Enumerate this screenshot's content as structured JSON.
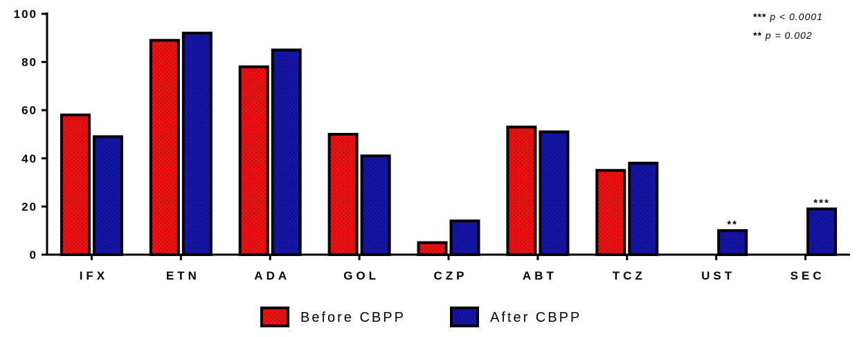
{
  "chart_data": {
    "type": "bar",
    "categories": [
      "IFX",
      "ETN",
      "ADA",
      "GOL",
      "CZP",
      "ABT",
      "TCZ",
      "UST",
      "SEC"
    ],
    "series": [
      {
        "name": "Before CBPP",
        "color": "#ee1111",
        "values": [
          58,
          89,
          78,
          50,
          5,
          53,
          35,
          0,
          0
        ]
      },
      {
        "name": "After CBPP",
        "color": "#1515a8",
        "values": [
          49,
          92,
          85,
          41,
          14,
          51,
          38,
          10,
          19
        ]
      }
    ],
    "ylim": [
      0,
      100
    ],
    "yticks": [
      0,
      20,
      40,
      60,
      80,
      100
    ],
    "significance": [
      {
        "category": "UST",
        "series": "After CBPP",
        "label": "**"
      },
      {
        "category": "SEC",
        "series": "After CBPP",
        "label": "***"
      }
    ],
    "notes": [
      "*** p < 0.0001",
      "** p = 0.002"
    ],
    "legend_position": "bottom-center",
    "grid": false
  }
}
